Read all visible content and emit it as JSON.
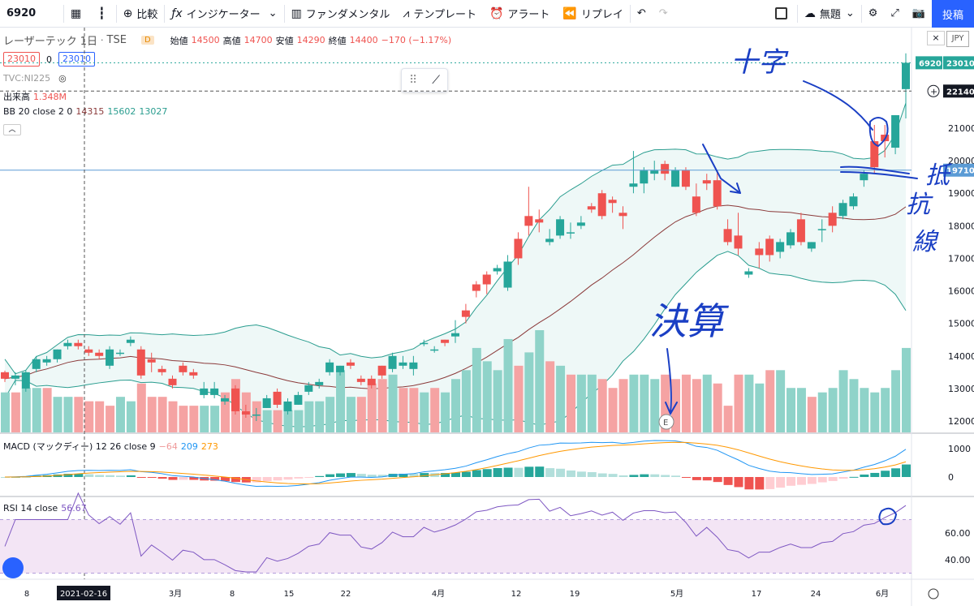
{
  "toolbar": {
    "symbol": "6920",
    "compare": "比較",
    "indicators": "インジケーター",
    "fundamentals": "ファンダメンタル",
    "templates": "テンプレート",
    "alert": "アラート",
    "replay": "リプレイ",
    "layout_name": "無題",
    "post": "投稿"
  },
  "header": {
    "name": "レーザーテック",
    "interval": "1日",
    "exchange": "TSE",
    "badge": "D",
    "open_label": "始値",
    "open": "14500",
    "high_label": "高値",
    "high": "14700",
    "low_label": "安値",
    "low": "14290",
    "close_label": "終値",
    "close": "14400",
    "change": "−170 (−1.17%)",
    "bid": "23010",
    "spread": "0",
    "ask": "23010",
    "compare_symbol": "TVC:NI225",
    "volume_label": "出来高",
    "volume_value": "1.348M",
    "bb_label": "BB 20 close 2 0",
    "bb_basis": "14315",
    "bb_upper": "15602",
    "bb_lower": "13027",
    "currency": "JPY",
    "crosshair_date": "2021-02-16"
  },
  "macd_legend": {
    "label": "MACD (マックディー) 12 26 close 9",
    "v1": "−64",
    "v2": "209",
    "v3": "273"
  },
  "rsi_legend": {
    "label": "RSI 14 close",
    "v1": "56.67"
  },
  "colors": {
    "up": "#26a69a",
    "down": "#ef5350",
    "bb": "#2a9d8f",
    "basis": "#8b3a3a",
    "macd": "#2196f3",
    "signal": "#ff9800",
    "rsi": "#7e57c2",
    "annot": "#1a3fc4"
  },
  "annotations": {
    "cross": "十字",
    "resist1": "抵",
    "resist2": "抗",
    "resist3": "線",
    "earn": "決算",
    "earn_marker": "E"
  },
  "price_tags": {
    "last_symbol": "6920",
    "last": "23010",
    "cross": "22140",
    "hline": "19710"
  },
  "chart_data": {
    "type": "candlestick",
    "price_axis": {
      "ticks": [
        12000,
        13000,
        14000,
        15000,
        16000,
        17000,
        18000,
        19000,
        20000,
        21000
      ],
      "min": 11700,
      "max": 23600
    },
    "x_ticks": [
      "8",
      "3月",
      "8",
      "15",
      "22",
      "4月",
      "12",
      "19",
      "5月",
      "17",
      "24",
      "6月"
    ],
    "candles": [
      [
        13500,
        13550,
        13200,
        13300
      ],
      [
        13300,
        13500,
        13100,
        13400
      ],
      [
        13000,
        13550,
        12900,
        13500
      ],
      [
        13600,
        14000,
        13500,
        13900
      ],
      [
        13800,
        14000,
        13700,
        13900
      ],
      [
        13900,
        14200,
        13800,
        14200
      ],
      [
        14300,
        14500,
        14200,
        14400
      ],
      [
        14400,
        14500,
        14200,
        14300
      ],
      [
        14200,
        14300,
        14000,
        14100
      ],
      [
        14100,
        14200,
        13900,
        14000
      ],
      [
        13700,
        14300,
        13600,
        14200
      ],
      [
        14100,
        14200,
        14000,
        14100
      ],
      [
        14400,
        14600,
        14300,
        14500
      ],
      [
        14200,
        14300,
        13300,
        13400
      ],
      [
        13900,
        14100,
        13500,
        13800
      ],
      [
        13600,
        13700,
        13400,
        13500
      ],
      [
        13300,
        13400,
        13000,
        13100
      ],
      [
        13700,
        13800,
        13400,
        13500
      ],
      [
        13500,
        13600,
        13300,
        13400
      ],
      [
        12800,
        13200,
        12700,
        13000
      ],
      [
        12800,
        13200,
        12700,
        13000
      ],
      [
        12600,
        12800,
        12500,
        12700
      ],
      [
        13000,
        13100,
        12200,
        12300
      ],
      [
        12300,
        12500,
        12100,
        12200
      ],
      [
        12200,
        12400,
        12000,
        12200
      ],
      [
        12400,
        12800,
        12400,
        12700
      ],
      [
        12900,
        13000,
        12400,
        12500
      ],
      [
        12300,
        12700,
        12200,
        12600
      ],
      [
        12500,
        12900,
        12500,
        12800
      ],
      [
        12900,
        13200,
        12800,
        13100
      ],
      [
        13100,
        13300,
        13000,
        13200
      ],
      [
        13500,
        13900,
        13400,
        13800
      ],
      [
        13500,
        13700,
        13400,
        13700
      ],
      [
        13800,
        13900,
        13600,
        13700
      ],
      [
        13300,
        13400,
        13100,
        13200
      ],
      [
        13300,
        13400,
        13000,
        13100
      ],
      [
        13700,
        13700,
        13300,
        13400
      ],
      [
        13600,
        14100,
        13500,
        14000
      ],
      [
        13700,
        14000,
        13600,
        13800
      ],
      [
        13600,
        14000,
        13400,
        13800
      ],
      [
        14400,
        14500,
        14300,
        14400
      ],
      [
        14200,
        14300,
        14100,
        14200
      ],
      [
        14500,
        14500,
        14300,
        14400
      ],
      [
        14600,
        15100,
        14400,
        14700
      ],
      [
        15400,
        15600,
        15000,
        15200
      ],
      [
        16200,
        16300,
        15800,
        16000
      ],
      [
        16500,
        16600,
        15900,
        16200
      ],
      [
        16600,
        16800,
        16500,
        16700
      ],
      [
        16100,
        17100,
        16000,
        16900
      ],
      [
        17600,
        17800,
        16800,
        17000
      ],
      [
        18300,
        19200,
        17700,
        18000
      ],
      [
        18200,
        18500,
        17800,
        18100
      ],
      [
        17500,
        17900,
        17400,
        17600
      ],
      [
        17700,
        18300,
        17600,
        18200
      ],
      [
        17800,
        18100,
        17600,
        17800
      ],
      [
        18000,
        18300,
        17900,
        18100
      ],
      [
        18600,
        18700,
        18400,
        18500
      ],
      [
        19000,
        19100,
        18200,
        18300
      ],
      [
        18800,
        18900,
        18400,
        18700
      ],
      [
        18400,
        18600,
        17900,
        18300
      ],
      [
        19200,
        20300,
        19000,
        19300
      ],
      [
        19300,
        19800,
        19000,
        19700
      ],
      [
        19600,
        20000,
        19400,
        19700
      ],
      [
        19900,
        20000,
        19400,
        19600
      ],
      [
        19200,
        19800,
        19200,
        19700
      ],
      [
        19700,
        19800,
        19100,
        19200
      ],
      [
        18900,
        19300,
        18300,
        18400
      ],
      [
        19400,
        19600,
        19100,
        19300
      ],
      [
        19400,
        19700,
        18500,
        18600
      ],
      [
        17900,
        18200,
        17400,
        17500
      ],
      [
        17700,
        18400,
        17100,
        17300
      ],
      [
        16500,
        16700,
        16400,
        16600
      ],
      [
        17300,
        17500,
        16700,
        17100
      ],
      [
        17600,
        17700,
        16900,
        17100
      ],
      [
        17200,
        17600,
        17000,
        17500
      ],
      [
        17400,
        17900,
        17300,
        17800
      ],
      [
        18200,
        18400,
        17400,
        17500
      ],
      [
        17300,
        17500,
        17200,
        17500
      ],
      [
        17900,
        18200,
        17500,
        17900
      ],
      [
        18400,
        18600,
        17800,
        18000
      ],
      [
        18300,
        18800,
        18200,
        18700
      ],
      [
        18600,
        19000,
        18500,
        18900
      ],
      [
        19400,
        19700,
        19200,
        19600
      ],
      [
        20600,
        21100,
        19600,
        19800
      ],
      [
        20800,
        21100,
        20100,
        20600
      ],
      [
        20400,
        21400,
        20200,
        21400
      ],
      [
        22200,
        23300,
        21300,
        23010
      ]
    ],
    "volume_up": [
      true,
      false,
      true,
      true,
      false,
      true,
      true,
      false,
      false,
      false,
      false,
      true,
      true,
      false,
      false,
      false,
      false,
      false,
      false,
      true,
      true,
      false,
      false,
      false,
      false,
      true,
      false,
      true,
      true,
      true,
      true,
      true,
      true,
      true,
      false,
      false,
      false,
      true,
      false,
      false,
      true,
      false,
      true,
      true,
      true,
      true,
      true,
      true,
      true,
      false,
      true,
      true,
      false,
      true,
      false,
      true,
      true,
      false,
      false,
      false,
      true,
      true,
      true,
      false,
      false,
      false,
      false,
      true,
      false,
      false,
      false,
      true,
      true,
      false,
      true,
      true,
      true,
      false,
      true,
      true,
      true,
      true,
      true,
      true,
      true,
      true,
      true
    ],
    "volume": [
      0.9,
      0.9,
      1.0,
      1.0,
      1.0,
      0.8,
      0.8,
      0.8,
      0.7,
      0.7,
      0.6,
      0.8,
      0.7,
      1.1,
      0.8,
      0.8,
      0.7,
      0.6,
      0.6,
      0.6,
      0.6,
      0.9,
      1.2,
      0.9,
      0.7,
      0.5,
      0.5,
      0.5,
      0.5,
      0.7,
      0.7,
      0.8,
      1.4,
      0.8,
      0.8,
      1.1,
      1.2,
      1.3,
      1.0,
      1.0,
      0.9,
      1.0,
      0.9,
      1.2,
      1.4,
      1.9,
      1.6,
      1.4,
      2.1,
      1.5,
      1.8,
      2.3,
      1.6,
      1.5,
      1.3,
      1.3,
      1.3,
      1.2,
      1.0,
      1.2,
      1.3,
      1.3,
      1.2,
      1.3,
      1.2,
      1.3,
      1.2,
      1.3,
      1.1,
      0.6,
      1.3,
      1.3,
      1.1,
      1.4,
      1.4,
      1.0,
      1.0,
      0.8,
      0.9,
      1.0,
      1.4,
      1.2,
      1.0,
      0.9,
      1.0,
      1.4,
      1.9
    ],
    "rsi_axis": {
      "ticks": [
        40,
        60
      ],
      "top_band": 70,
      "bottom_band": 30
    },
    "macd_axis": {
      "ticks": [
        1000,
        0
      ]
    }
  }
}
